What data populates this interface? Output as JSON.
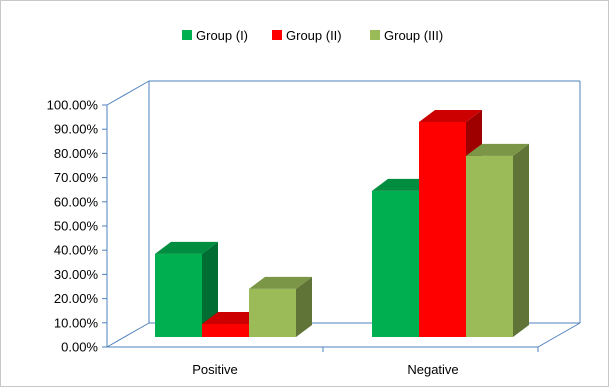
{
  "chart_data": {
    "type": "bar",
    "style": "3d-clustered-column",
    "categories": [
      "Positive",
      "Negative"
    ],
    "series": [
      {
        "name": "Group (I)",
        "values": [
          38.5,
          64.5
        ],
        "color": "#00b050"
      },
      {
        "name": "Group (II)",
        "values": [
          9.5,
          93.0
        ],
        "color": "#ff0000"
      },
      {
        "name": "Group (III)",
        "values": [
          24.0,
          79.0
        ],
        "color": "#9bbb59"
      }
    ],
    "y_ticks": [
      "0.00%",
      "10.00%",
      "20.00%",
      "30.00%",
      "40.00%",
      "50.00%",
      "60.00%",
      "70.00%",
      "80.00%",
      "90.00%",
      "100.00%"
    ],
    "ylim": [
      0,
      100
    ],
    "y_unit": "%",
    "title": "",
    "xlabel": "",
    "ylabel": "",
    "legend": "top",
    "grid": false,
    "wall_line_color": "#4f81bd"
  }
}
